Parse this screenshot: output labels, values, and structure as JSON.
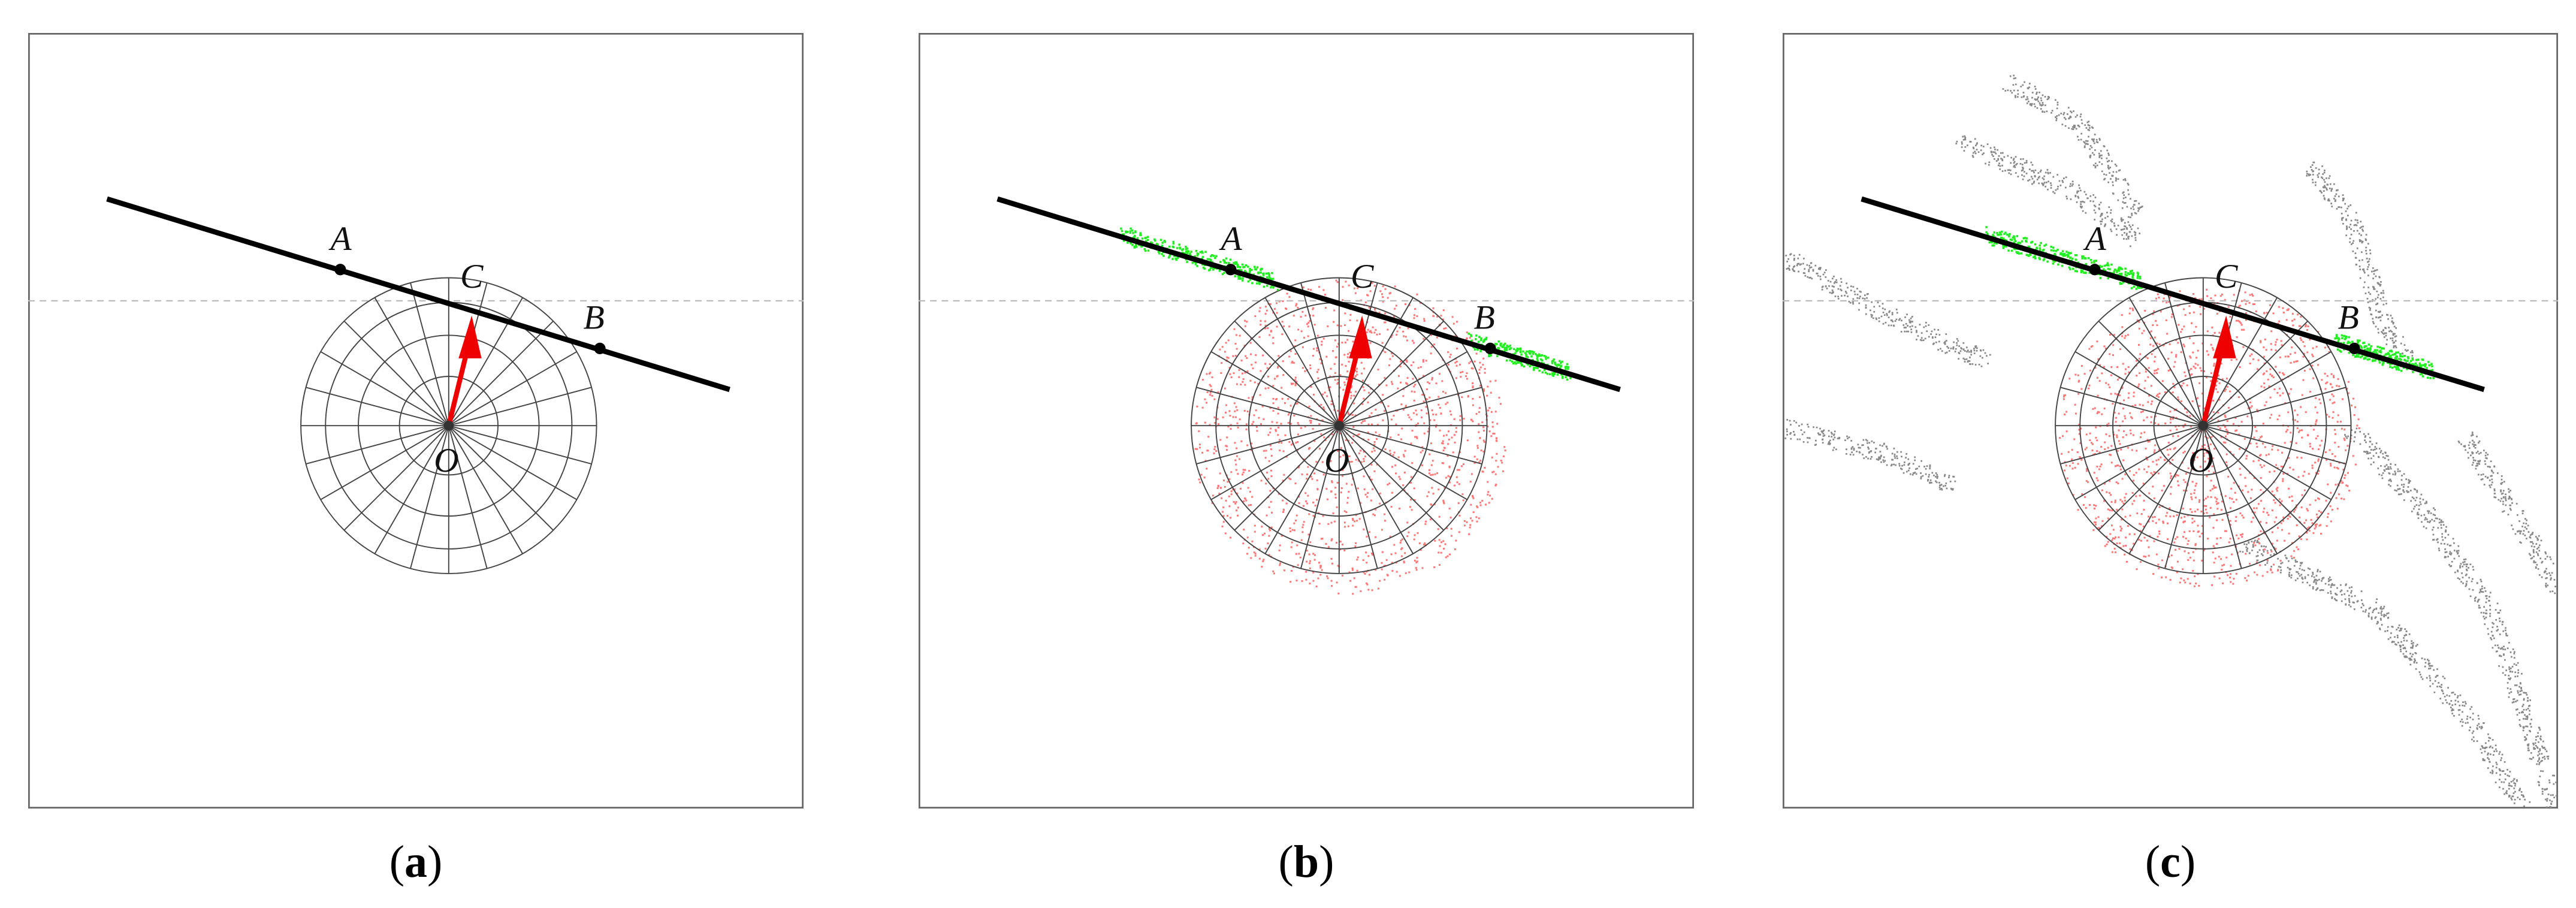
{
  "panels": [
    {
      "points": {
        "A": "A",
        "B": "B",
        "C": "C",
        "O": "O"
      },
      "caption": [
        "(",
        "a",
        ")"
      ]
    },
    {
      "points": {
        "A": "A",
        "B": "B",
        "C": "C",
        "O": "O"
      },
      "caption": [
        "(",
        "b",
        ")"
      ]
    },
    {
      "points": {
        "A": "A",
        "B": "B",
        "C": "C",
        "O": "O"
      },
      "caption": [
        "(",
        "c",
        ")"
      ]
    }
  ]
}
